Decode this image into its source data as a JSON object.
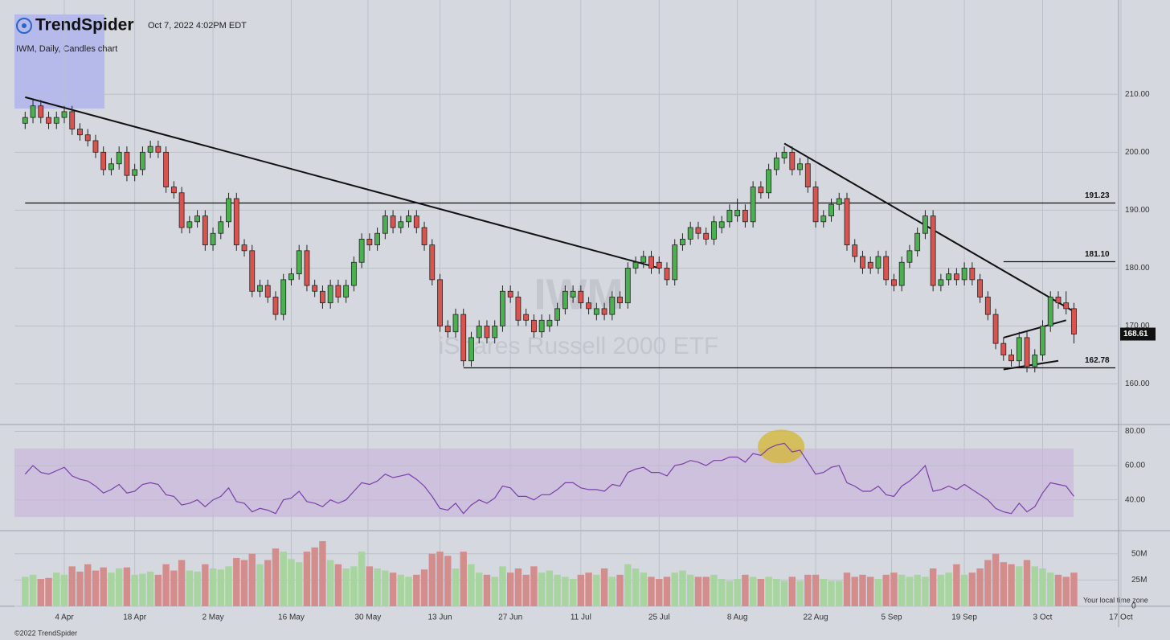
{
  "chart_data": {
    "type": "candlestick",
    "brand": "TrendSpider",
    "timestamp": "Oct 7, 2022 4:02PM EDT",
    "subtitle": "IWM, Daily, Candles chart",
    "watermark": "IWM",
    "watermark_name": "iShares Russell 2000 ETF",
    "copyright": "©2022 TrendSpider",
    "timezone_note": "Your local time zone",
    "up_color": "#4caf50",
    "down_color": "#d9534f",
    "ylim": [
      153,
      223.5
    ],
    "yticks": [
      {
        "value": 160,
        "label": "160.00"
      },
      {
        "value": 170,
        "label": "170.00"
      },
      {
        "value": 180,
        "label": "180.00"
      },
      {
        "value": 190,
        "label": "190.00"
      },
      {
        "value": 200,
        "label": "200.00"
      },
      {
        "value": 210,
        "label": "210.00"
      }
    ],
    "xticks": [
      {
        "value": 5,
        "label": "4 Apr"
      },
      {
        "value": 14,
        "label": "18 Apr"
      },
      {
        "value": 24,
        "label": "2 May"
      },
      {
        "value": 34,
        "label": "16 May"
      },
      {
        "value": 43.8,
        "label": "30 May"
      },
      {
        "value": 53,
        "label": "13 Jun"
      },
      {
        "value": 62,
        "label": "27 Jun"
      },
      {
        "value": 71,
        "label": "11 Jul"
      },
      {
        "value": 81,
        "label": "25 Jul"
      },
      {
        "value": 91,
        "label": "8 Aug"
      },
      {
        "value": 101,
        "label": "22 Aug"
      },
      {
        "value": 110.7,
        "label": "5 Sep"
      },
      {
        "value": 120,
        "label": "19 Sep"
      },
      {
        "value": 130,
        "label": "3 Oct"
      },
      {
        "value": 140,
        "label": "17 Oct"
      }
    ],
    "grid": true,
    "candles": [
      [
        205,
        207,
        204,
        206
      ],
      [
        206,
        209,
        205,
        208
      ],
      [
        208,
        209,
        205,
        206
      ],
      [
        206,
        207,
        204,
        205
      ],
      [
        205,
        207,
        204,
        206
      ],
      [
        206,
        208,
        205,
        207
      ],
      [
        207,
        208,
        203,
        204
      ],
      [
        204,
        205,
        202,
        203
      ],
      [
        203,
        204,
        201,
        202
      ],
      [
        202,
        203,
        199,
        200
      ],
      [
        200,
        201,
        196,
        197
      ],
      [
        197,
        199,
        196,
        198
      ],
      [
        198,
        201,
        197,
        200
      ],
      [
        200,
        201,
        195,
        196
      ],
      [
        196,
        198,
        195,
        197
      ],
      [
        197,
        201,
        196,
        200
      ],
      [
        200,
        202,
        199,
        201
      ],
      [
        201,
        202,
        199,
        200
      ],
      [
        200,
        201,
        193,
        194
      ],
      [
        194,
        195,
        192,
        193
      ],
      [
        193,
        194,
        186,
        187
      ],
      [
        187,
        189,
        186,
        188
      ],
      [
        188,
        190,
        187,
        189
      ],
      [
        189,
        190,
        183,
        184
      ],
      [
        184,
        187,
        183,
        186
      ],
      [
        186,
        189,
        185,
        188
      ],
      [
        188,
        193,
        187,
        192
      ],
      [
        192,
        193,
        183,
        184
      ],
      [
        184,
        185,
        182,
        183
      ],
      [
        183,
        184,
        175,
        176
      ],
      [
        176,
        178,
        175,
        177
      ],
      [
        177,
        178,
        174,
        175
      ],
      [
        175,
        176,
        171,
        172
      ],
      [
        172,
        179,
        171,
        178
      ],
      [
        178,
        180,
        177,
        179
      ],
      [
        179,
        184,
        178,
        183
      ],
      [
        183,
        184,
        176,
        177
      ],
      [
        177,
        178,
        175,
        176
      ],
      [
        176,
        177,
        173,
        174
      ],
      [
        174,
        178,
        173,
        177
      ],
      [
        177,
        178,
        174,
        175
      ],
      [
        175,
        178,
        174,
        177
      ],
      [
        177,
        182,
        176,
        181
      ],
      [
        181,
        186,
        180,
        185
      ],
      [
        185,
        186,
        183,
        184
      ],
      [
        184,
        187,
        183,
        186
      ],
      [
        186,
        190,
        185,
        189
      ],
      [
        189,
        190,
        186,
        187
      ],
      [
        187,
        189,
        186,
        188
      ],
      [
        188,
        190,
        187,
        189
      ],
      [
        189,
        190,
        186,
        187
      ],
      [
        187,
        188,
        183,
        184
      ],
      [
        184,
        185,
        177,
        178
      ],
      [
        178,
        179,
        169,
        170
      ],
      [
        170,
        171,
        168,
        169
      ],
      [
        169,
        173,
        168,
        172
      ],
      [
        172,
        173,
        163,
        164
      ],
      [
        164,
        169,
        163,
        168
      ],
      [
        168,
        171,
        167,
        170
      ],
      [
        170,
        171,
        167,
        168
      ],
      [
        168,
        171,
        167,
        170
      ],
      [
        170,
        177,
        169,
        176
      ],
      [
        176,
        177,
        174,
        175
      ],
      [
        175,
        176,
        170,
        171
      ],
      [
        172,
        173,
        170,
        171
      ],
      [
        171,
        172,
        168,
        169
      ],
      [
        169,
        172,
        168,
        171
      ],
      [
        170,
        172,
        169,
        171
      ],
      [
        171,
        174,
        170,
        173
      ],
      [
        173,
        177,
        172,
        176
      ],
      [
        175,
        177,
        174,
        176
      ],
      [
        176,
        177,
        173,
        174
      ],
      [
        174,
        175,
        172,
        173
      ],
      [
        172,
        174,
        171,
        173
      ],
      [
        173,
        174,
        171,
        172
      ],
      [
        172,
        176,
        171,
        175
      ],
      [
        175,
        176,
        173,
        174
      ],
      [
        174,
        181,
        173,
        180
      ],
      [
        180,
        182,
        179,
        181
      ],
      [
        181,
        183,
        180,
        182
      ],
      [
        182,
        183,
        179,
        180
      ],
      [
        181,
        182,
        179,
        180
      ],
      [
        180,
        181,
        177,
        178
      ],
      [
        178,
        185,
        177,
        184
      ],
      [
        184,
        186,
        183,
        185
      ],
      [
        185,
        188,
        184,
        187
      ],
      [
        187,
        188,
        185,
        186
      ],
      [
        186,
        187,
        184,
        185
      ],
      [
        185,
        189,
        184,
        188
      ],
      [
        187,
        189,
        186,
        188
      ],
      [
        188,
        191,
        187,
        190
      ],
      [
        189,
        192,
        188,
        190
      ],
      [
        190,
        191,
        187,
        188
      ],
      [
        188,
        195,
        187,
        194
      ],
      [
        194,
        195,
        192,
        193
      ],
      [
        193,
        198,
        192,
        197
      ],
      [
        197,
        200,
        196,
        199
      ],
      [
        199,
        201,
        198,
        200
      ],
      [
        200,
        201,
        196,
        197
      ],
      [
        197,
        199,
        196,
        198
      ],
      [
        198,
        199,
        193,
        194
      ],
      [
        194,
        195,
        187,
        188
      ],
      [
        188,
        190,
        187,
        189
      ],
      [
        189,
        192,
        188,
        191
      ],
      [
        191,
        193,
        190,
        192
      ],
      [
        192,
        193,
        183,
        184
      ],
      [
        184,
        185,
        181,
        182
      ],
      [
        182,
        183,
        179,
        180
      ],
      [
        181,
        182,
        179,
        180
      ],
      [
        180,
        183,
        179,
        182
      ],
      [
        182,
        183,
        177,
        178
      ],
      [
        178,
        179,
        176,
        177
      ],
      [
        177,
        182,
        176,
        181
      ],
      [
        181,
        184,
        180,
        183
      ],
      [
        183,
        187,
        182,
        186
      ],
      [
        186,
        190,
        185,
        189
      ],
      [
        189,
        190,
        176,
        177
      ],
      [
        177,
        179,
        176,
        178
      ],
      [
        178,
        180,
        177,
        179
      ],
      [
        179,
        180,
        177,
        178
      ],
      [
        178,
        181,
        177,
        180
      ],
      [
        180,
        181,
        177,
        178
      ],
      [
        178,
        179,
        174,
        175
      ],
      [
        175,
        176,
        171,
        172
      ],
      [
        172,
        173,
        166,
        167
      ],
      [
        167,
        168,
        164,
        165
      ],
      [
        165,
        166,
        163,
        164
      ],
      [
        164,
        169,
        163,
        168
      ],
      [
        168,
        169,
        162,
        163
      ],
      [
        163,
        166,
        162,
        165
      ],
      [
        165,
        171,
        164,
        170
      ],
      [
        170,
        176,
        169,
        175
      ],
      [
        175,
        176,
        173,
        174
      ],
      [
        174,
        176,
        172,
        173
      ],
      [
        173,
        174,
        167,
        168.61
      ]
    ],
    "last_price": 168.61,
    "levels": [
      {
        "value": 191.23,
        "label": "191.23",
        "from": 0
      },
      {
        "value": 181.1,
        "label": "181.10",
        "from": 125
      },
      {
        "value": 162.78,
        "label": "162.78",
        "from": 56
      }
    ],
    "trendlines": [
      [
        0,
        209.5,
        81,
        180
      ],
      [
        97,
        201.5,
        134,
        172.5
      ],
      [
        125,
        168,
        133,
        171
      ],
      [
        125,
        162.5,
        132,
        164
      ]
    ],
    "rsi": {
      "ylim": [
        22,
        84
      ],
      "band": [
        30,
        70
      ],
      "yticks": [
        {
          "value": 40,
          "label": "40.00"
        },
        {
          "value": 60,
          "label": "60.00"
        },
        {
          "value": 80,
          "label": "80.00"
        }
      ],
      "color": "#7b3fa8",
      "values": [
        55,
        60,
        56,
        55,
        57,
        59,
        54,
        52,
        51,
        48,
        44,
        46,
        49,
        44,
        45,
        49,
        50,
        49,
        43,
        42,
        37,
        38,
        40,
        36,
        40,
        42,
        47,
        39,
        38,
        33,
        35,
        34,
        32,
        40,
        41,
        45,
        39,
        38,
        36,
        40,
        38,
        40,
        45,
        50,
        49,
        51,
        55,
        53,
        54,
        55,
        52,
        48,
        42,
        35,
        34,
        38,
        32,
        37,
        40,
        38,
        41,
        48,
        47,
        42,
        42,
        40,
        43,
        43,
        46,
        50,
        50,
        47,
        46,
        46,
        45,
        49,
        48,
        56,
        58,
        59,
        56,
        56,
        54,
        60,
        61,
        63,
        62,
        60,
        63,
        63,
        65,
        65,
        62,
        67,
        66,
        70,
        72,
        73,
        68,
        69,
        62,
        55,
        56,
        59,
        60,
        50,
        48,
        45,
        45,
        48,
        43,
        42,
        48,
        51,
        55,
        60,
        45,
        46,
        48,
        46,
        49,
        46,
        43,
        40,
        35,
        33,
        32,
        38,
        33,
        36,
        44,
        50,
        49,
        48,
        42
      ]
    },
    "volume": {
      "ylim": [
        0,
        72
      ],
      "yticks": [
        {
          "value": 0,
          "label": "0"
        },
        {
          "value": 25,
          "label": "25M"
        },
        {
          "value": 50,
          "label": "50M"
        }
      ],
      "values": [
        28,
        30,
        26,
        27,
        32,
        30,
        38,
        33,
        40,
        34,
        37,
        32,
        36,
        37,
        30,
        31,
        33,
        30,
        40,
        34,
        44,
        34,
        33,
        40,
        36,
        35,
        38,
        46,
        44,
        50,
        40,
        44,
        55,
        52,
        45,
        42,
        52,
        56,
        62,
        44,
        40,
        36,
        38,
        52,
        38,
        36,
        34,
        32,
        30,
        28,
        30,
        35,
        50,
        52,
        48,
        36,
        52,
        40,
        32,
        30,
        28,
        38,
        32,
        36,
        30,
        38,
        32,
        34,
        30,
        28,
        26,
        30,
        32,
        30,
        36,
        28,
        30,
        40,
        36,
        32,
        28,
        26,
        28,
        32,
        34,
        30,
        28,
        28,
        30,
        26,
        24,
        26,
        30,
        28,
        26,
        28,
        26,
        24,
        28,
        24,
        30,
        30,
        26,
        24,
        24,
        32,
        28,
        30,
        28,
        26,
        30,
        32,
        30,
        28,
        30,
        28,
        36,
        30,
        32,
        40,
        30,
        32,
        36,
        44,
        50,
        42,
        40,
        38,
        44,
        38,
        36,
        32,
        30,
        28,
        32
      ]
    }
  }
}
